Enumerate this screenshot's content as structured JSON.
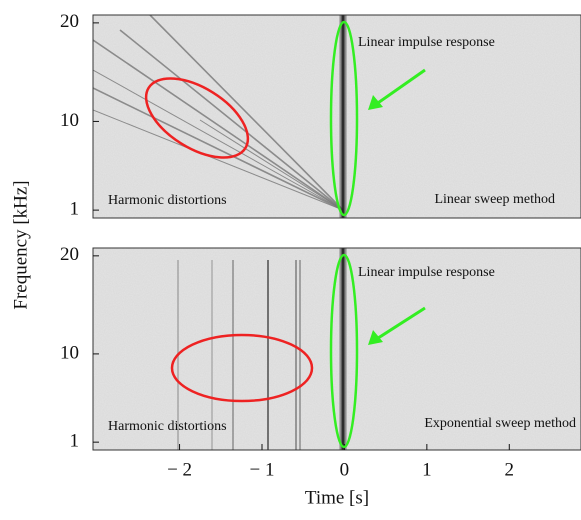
{
  "chart_data": [
    {
      "type": "spectrogram",
      "ylabel": "Frequency [kHz]",
      "xlim": [
        -3.05,
        2.87
      ],
      "ylim": [
        0.2,
        20.8
      ],
      "yticks": [
        1,
        10,
        20
      ],
      "annotations": [
        "Linear impulse response",
        "Harmonic distortions",
        "Linear sweep method"
      ]
    },
    {
      "type": "spectrogram",
      "xlabel": "Time [s]",
      "xlim": [
        -3.05,
        2.87
      ],
      "ylim": [
        0.2,
        20.8
      ],
      "yticks": [
        1,
        10,
        20
      ],
      "xticks": [
        {
          "value": -2,
          "label": "− 2"
        },
        {
          "value": -1,
          "label": "− 1"
        },
        0,
        1,
        2
      ],
      "annotations": [
        "Linear impulse response",
        "Harmonic distortions",
        "Exponential sweep method"
      ]
    }
  ]
}
